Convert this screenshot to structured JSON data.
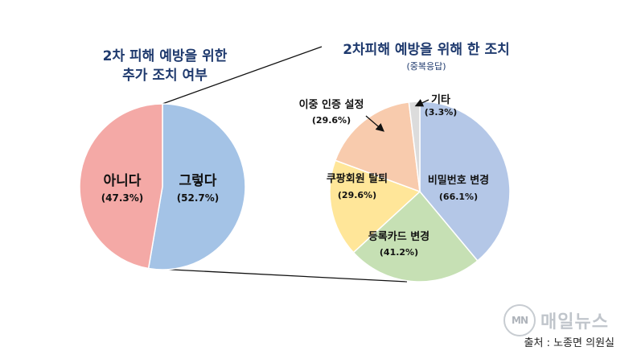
{
  "chart_data": [
    {
      "type": "pie",
      "title": "2차 피해 예방을 위한 추가 조치 여부",
      "title_lines": [
        "2차 피해 예방을 위한",
        "추가 조치 여부"
      ],
      "slices": [
        {
          "label": "그렇다",
          "value": 52.7,
          "value_label": "(52.7%)",
          "color": "#a4c3e6"
        },
        {
          "label": "아니다",
          "value": 47.3,
          "value_label": "(47.3%)",
          "color": "#f4a9a6"
        }
      ]
    },
    {
      "type": "pie",
      "title": "2차피해 예방을 위해 한 조치",
      "subtitle": "(중복응답)",
      "slices": [
        {
          "label": "비밀번호 변경",
          "value": 66.1,
          "value_label": "(66.1%)",
          "color": "#b4c7e7"
        },
        {
          "label": "등록카드 변경",
          "value": 41.2,
          "value_label": "(41.2%)",
          "color": "#c6e0b4"
        },
        {
          "label": "쿠팡회원 탈퇴",
          "value": 29.6,
          "value_label": "(29.6%)",
          "color": "#ffe699"
        },
        {
          "label": "이중 인증 설정",
          "value": 29.6,
          "value_label": "(29.6%)",
          "color": "#f8cbad"
        },
        {
          "label": "기타",
          "value": 3.3,
          "value_label": "(3.3%)",
          "color": "#dcdcdc"
        }
      ]
    }
  ],
  "source": "출처 : 노종면 의원실",
  "watermark": {
    "logo_text": "MN",
    "name": "매일뉴스"
  }
}
